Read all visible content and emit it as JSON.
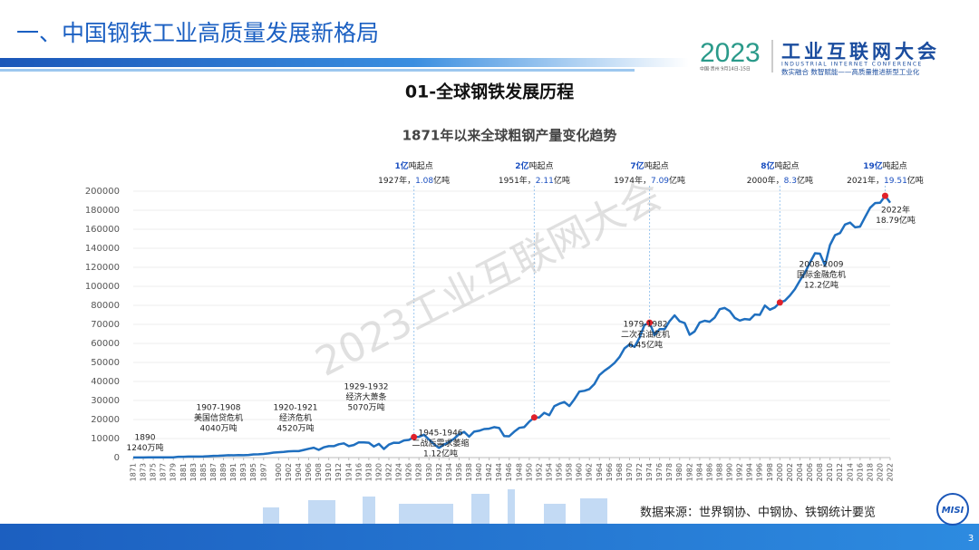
{
  "header": {
    "title": "一、中国钢铁工业高质量发展新格局",
    "logo_year": "2023",
    "logo_name": "工业互联网大会",
    "logo_en": "INDUSTRIAL INTERNET CONFERENCE",
    "logo_place": "中国·贵州  9月14日-15日",
    "logo_slogan": "数实融合  数智赋能——高质量推进新型工业化"
  },
  "section_title": "01-全球钢铁发展历程",
  "watermark": "2023工业互联网大会",
  "footer": {
    "source": "数据来源：世界钢协、中钢协、铁钢统计要览",
    "page": "3",
    "badge": "MISI"
  },
  "chart_data": {
    "type": "line",
    "title": "1871年以来全球粗钢产量变化趋势",
    "x": [
      1871,
      1872,
      1873,
      1874,
      1875,
      1876,
      1877,
      1878,
      1879,
      1880,
      1881,
      1882,
      1883,
      1884,
      1885,
      1886,
      1887,
      1888,
      1889,
      1890,
      1891,
      1892,
      1893,
      1894,
      1895,
      1896,
      1897,
      1898,
      1899,
      1900,
      1901,
      1902,
      1903,
      1904,
      1905,
      1906,
      1907,
      1908,
      1909,
      1910,
      1911,
      1912,
      1913,
      1914,
      1915,
      1916,
      1917,
      1918,
      1919,
      1920,
      1921,
      1922,
      1923,
      1924,
      1925,
      1926,
      1927,
      1928,
      1929,
      1930,
      1931,
      1932,
      1933,
      1934,
      1935,
      1936,
      1937,
      1938,
      1939,
      1940,
      1941,
      1942,
      1943,
      1944,
      1945,
      1946,
      1947,
      1948,
      1949,
      1950,
      1951,
      1952,
      1953,
      1954,
      1955,
      1956,
      1957,
      1958,
      1959,
      1960,
      1961,
      1962,
      1963,
      1964,
      1965,
      1966,
      1967,
      1968,
      1969,
      1970,
      1971,
      1972,
      1973,
      1974,
      1975,
      1976,
      1977,
      1978,
      1979,
      1980,
      1981,
      1982,
      1983,
      1984,
      1985,
      1986,
      1987,
      1988,
      1989,
      1990,
      1991,
      1992,
      1993,
      1994,
      1995,
      1996,
      1997,
      1998,
      1999,
      2000,
      2001,
      2002,
      2003,
      2004,
      2005,
      2006,
      2007,
      2008,
      2009,
      2010,
      2011,
      2012,
      2013,
      2014,
      2015,
      2016,
      2017,
      2018,
      2019,
      2020,
      2021,
      2022
    ],
    "series": [
      {
        "name": "全球粗钢产量",
        "color": "#1f6fbf",
        "values": [
          50,
          60,
          70,
          80,
          90,
          100,
          120,
          140,
          160,
          420,
          450,
          500,
          520,
          540,
          580,
          700,
          900,
          950,
          1100,
          1240,
          1200,
          1300,
          1250,
          1400,
          1650,
          1700,
          1900,
          2200,
          2600,
          2800,
          3000,
          3300,
          3400,
          3400,
          4000,
          4600,
          5200,
          4040,
          5400,
          6000,
          6000,
          7000,
          7500,
          6000,
          6600,
          8000,
          8000,
          7800,
          5800,
          7200,
          4520,
          6800,
          7800,
          7700,
          9000,
          9300,
          10800,
          10900,
          12000,
          9500,
          7000,
          5070,
          6800,
          8200,
          9900,
          12300,
          13500,
          11000,
          13600,
          14100,
          15000,
          15200,
          16000,
          15500,
          11300,
          11200,
          13600,
          15600,
          16000,
          18900,
          21100,
          21100,
          23500,
          22300,
          27000,
          28300,
          29200,
          27100,
          30600,
          34700,
          35100,
          36000,
          38600,
          43400,
          45600,
          47500,
          49700,
          52800,
          57400,
          59500,
          58200,
          63000,
          69700,
          70900,
          64400,
          67500,
          67500,
          71700,
          74700,
          71600,
          70700,
          64500,
          66300,
          71000,
          71900,
          71400,
          73600,
          78000,
          78600,
          77000,
          73400,
          72000,
          72800,
          72500,
          75200,
          75000,
          79900,
          77700,
          78900,
          83000,
          85000,
          90400,
          97000,
          106200,
          114400,
          124900,
          134800,
          134300,
          122000,
          143300,
          153800,
          156000,
          165000,
          167000,
          162000,
          162800,
          173000,
          182600,
          187500,
          187800,
          195100,
          187900
        ]
      }
    ],
    "xlim": [
      1871,
      2022
    ],
    "xticks": [
      1871,
      1873,
      1875,
      1877,
      1879,
      1881,
      1883,
      1885,
      1887,
      1889,
      1891,
      1893,
      1895,
      1897,
      1900,
      1902,
      1904,
      1906,
      1908,
      1910,
      1912,
      1914,
      1916,
      1918,
      1920,
      1922,
      1924,
      1926,
      1928,
      1930,
      1932,
      1934,
      1936,
      1938,
      1940,
      1942,
      1944,
      1946,
      1948,
      1950,
      1952,
      1954,
      1956,
      1958,
      1960,
      1962,
      1964,
      1966,
      1968,
      1970,
      1972,
      1974,
      1976,
      1978,
      1980,
      1982,
      1984,
      1986,
      1988,
      1990,
      1992,
      1994,
      1996,
      1998,
      2000,
      2002,
      2004,
      2006,
      2008,
      2010,
      2012,
      2014,
      2016,
      2018,
      2020,
      2022
    ],
    "ylim": [
      0,
      200000
    ],
    "yticks": [
      0,
      10000,
      20000,
      30000,
      40000,
      50000,
      60000,
      70000,
      80000,
      100000,
      120000,
      140000,
      160000,
      180000,
      200000
    ],
    "milestones": [
      {
        "x": 1927,
        "level": "1亿",
        "level_suffix": "吨起点",
        "year": "1927年，",
        "amount": "1.08",
        "amount_unit": "亿吨"
      },
      {
        "x": 1951,
        "level": "2亿",
        "level_suffix": "吨起点",
        "year": "1951年，",
        "amount": "2.11",
        "amount_unit": "亿吨"
      },
      {
        "x": 1974,
        "level": "7亿",
        "level_suffix": "吨起点",
        "year": "1974年，",
        "amount": "7.09",
        "amount_unit": "亿吨"
      },
      {
        "x": 2000,
        "level": "8亿",
        "level_suffix": "吨起点",
        "year": "2000年，",
        "amount": "8.3",
        "amount_unit": "亿吨"
      },
      {
        "x": 2021,
        "level": "19亿",
        "level_suffix": "吨起点",
        "year": "2021年，",
        "amount": "19.51",
        "amount_unit": "亿吨"
      }
    ],
    "annotations": [
      {
        "lines": [
          "1890",
          "1240万吨"
        ]
      },
      {
        "lines": [
          "1907-1908",
          "美国信贷危机",
          "4040万吨"
        ]
      },
      {
        "lines": [
          "1920-1921",
          "经济危机",
          "4520万吨"
        ]
      },
      {
        "lines": [
          "1929-1932",
          "经济大萧条",
          "5070万吨"
        ]
      },
      {
        "lines": [
          "1945-1946",
          "二战后需求萎缩",
          "1.12亿吨"
        ]
      },
      {
        "lines": [
          "1979-1982",
          "二次石油危机",
          "6.45亿吨"
        ]
      },
      {
        "lines": [
          "2008-2009",
          "国际金融危机",
          "12.2亿吨"
        ]
      },
      {
        "lines": [
          "2022年",
          "18.79亿吨"
        ]
      }
    ]
  }
}
